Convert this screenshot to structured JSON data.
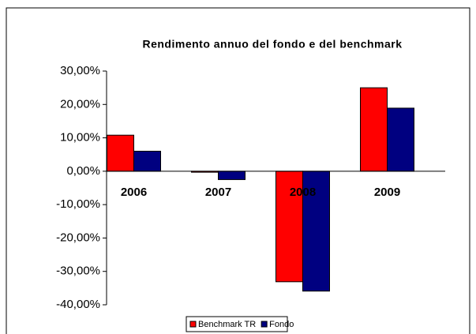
{
  "chart_data": {
    "type": "bar",
    "title": "Rendimento annuo del fondo e del benchmark",
    "categories": [
      "2006",
      "2007",
      "2008",
      "2009"
    ],
    "series": [
      {
        "name": "Benchmark TR",
        "color": "#ff0000",
        "values": [
          10.8,
          -0.3,
          -33.1,
          25
        ]
      },
      {
        "name": "Fondo",
        "color": "#000080",
        "values": [
          6,
          -2.5,
          -35.9,
          18.9
        ]
      }
    ],
    "ylim": [
      -40,
      30
    ],
    "yticks": [
      {
        "value": -40,
        "label": "-40,00%"
      },
      {
        "value": -30,
        "label": "-30,00%"
      },
      {
        "value": -20,
        "label": "-20,00%"
      },
      {
        "value": -10,
        "label": "-10,00%"
      },
      {
        "value": 0,
        "label": "0,00%"
      },
      {
        "value": 10,
        "label": "10,00%"
      },
      {
        "value": 20,
        "label": "20,00%"
      },
      {
        "value": 30,
        "label": "30,00%"
      }
    ],
    "legend": "bottom"
  }
}
